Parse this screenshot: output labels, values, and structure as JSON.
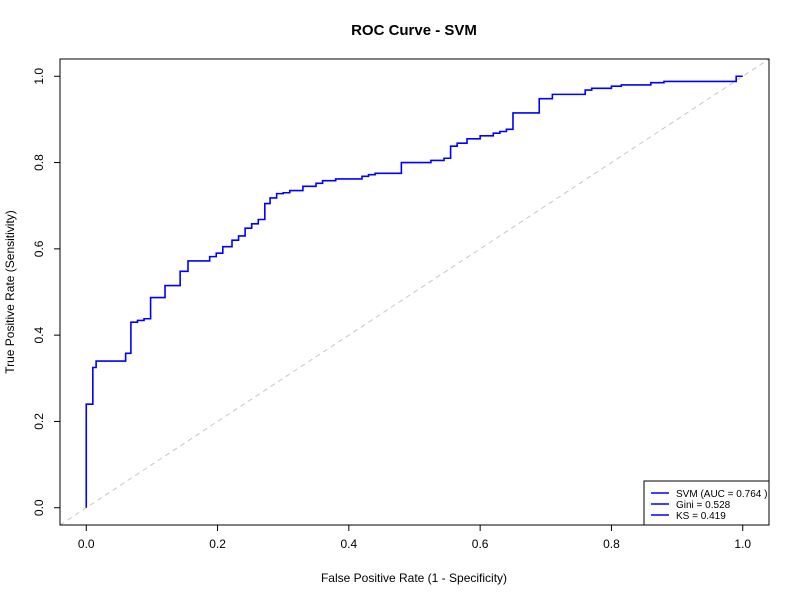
{
  "chart_data": {
    "type": "line",
    "title": "ROC Curve - SVM",
    "xlabel": "False Positive Rate (1 - Specificity)",
    "ylabel": "True Positive Rate (Sensitivity)",
    "xlim": [
      -0.04,
      1.04
    ],
    "ylim": [
      -0.04,
      1.04
    ],
    "x_ticks": [
      0.0,
      0.2,
      0.4,
      0.6,
      0.8,
      1.0
    ],
    "y_ticks": [
      0.0,
      0.2,
      0.4,
      0.6,
      0.8,
      1.0
    ],
    "x_tick_labels": [
      "0.0",
      "0.2",
      "0.4",
      "0.6",
      "0.8",
      "1.0"
    ],
    "y_tick_labels": [
      "0.0",
      "0.2",
      "0.4",
      "0.6",
      "0.8",
      "1.0"
    ],
    "grid": false,
    "legend_position": "bottom-right",
    "legend": [
      "SVM (AUC = 0.764 )",
      "Gini = 0.528",
      "KS = 0.419"
    ],
    "colors": {
      "curve": "#0000ff",
      "diagonal": "#c8c8c8"
    },
    "diagonal": {
      "x": [
        -0.04,
        1.04
      ],
      "y": [
        -0.04,
        1.04
      ]
    },
    "series": [
      {
        "x": [
          0.0,
          0.0,
          0.01,
          0.01,
          0.015,
          0.015,
          0.06,
          0.06,
          0.068,
          0.068,
          0.078,
          0.078,
          0.088,
          0.088,
          0.098,
          0.098,
          0.12,
          0.12,
          0.143,
          0.143,
          0.155,
          0.155,
          0.188,
          0.188,
          0.198,
          0.198,
          0.208,
          0.208,
          0.222,
          0.222,
          0.232,
          0.232,
          0.242,
          0.242,
          0.252,
          0.252,
          0.262,
          0.262,
          0.272,
          0.272,
          0.28,
          0.28,
          0.29,
          0.29,
          0.3,
          0.3,
          0.31,
          0.31,
          0.33,
          0.33,
          0.35,
          0.35,
          0.36,
          0.36,
          0.37,
          0.37,
          0.38,
          0.38,
          0.42,
          0.42,
          0.43,
          0.43,
          0.44,
          0.44,
          0.48,
          0.48,
          0.525,
          0.525,
          0.545,
          0.545,
          0.555,
          0.555,
          0.565,
          0.565,
          0.58,
          0.58,
          0.6,
          0.6,
          0.62,
          0.62,
          0.63,
          0.63,
          0.64,
          0.64,
          0.65,
          0.65,
          0.69,
          0.69,
          0.71,
          0.71,
          0.76,
          0.76,
          0.77,
          0.77,
          0.8,
          0.8,
          0.815,
          0.815,
          0.86,
          0.86,
          0.88,
          0.88,
          0.99,
          0.99,
          1.0
        ],
        "y": [
          0.0,
          0.24,
          0.24,
          0.325,
          0.325,
          0.34,
          0.34,
          0.358,
          0.358,
          0.43,
          0.43,
          0.434,
          0.434,
          0.438,
          0.438,
          0.487,
          0.487,
          0.515,
          0.515,
          0.548,
          0.548,
          0.572,
          0.572,
          0.582,
          0.582,
          0.59,
          0.59,
          0.605,
          0.605,
          0.62,
          0.62,
          0.63,
          0.63,
          0.648,
          0.648,
          0.658,
          0.658,
          0.668,
          0.668,
          0.705,
          0.705,
          0.718,
          0.718,
          0.728,
          0.728,
          0.73,
          0.73,
          0.735,
          0.735,
          0.745,
          0.745,
          0.752,
          0.752,
          0.758,
          0.758,
          0.758,
          0.758,
          0.762,
          0.762,
          0.768,
          0.768,
          0.772,
          0.772,
          0.775,
          0.775,
          0.8,
          0.8,
          0.805,
          0.805,
          0.81,
          0.81,
          0.838,
          0.838,
          0.845,
          0.845,
          0.855,
          0.855,
          0.862,
          0.862,
          0.868,
          0.868,
          0.872,
          0.872,
          0.877,
          0.877,
          0.915,
          0.915,
          0.948,
          0.948,
          0.958,
          0.958,
          0.968,
          0.968,
          0.972,
          0.972,
          0.977,
          0.977,
          0.98,
          0.98,
          0.985,
          0.985,
          0.988,
          0.988,
          1.0,
          1.0
        ]
      }
    ]
  }
}
